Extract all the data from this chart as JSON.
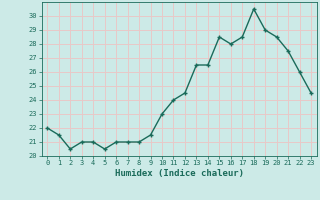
{
  "x": [
    0,
    1,
    2,
    3,
    4,
    5,
    6,
    7,
    8,
    9,
    10,
    11,
    12,
    13,
    14,
    15,
    16,
    17,
    18,
    19,
    20,
    21,
    22,
    23
  ],
  "y": [
    22,
    21.5,
    20.5,
    21,
    21,
    20.5,
    21,
    21,
    21,
    21.5,
    23,
    24,
    24.5,
    26.5,
    26.5,
    28.5,
    28,
    28.5,
    30.5,
    29,
    28.5,
    27.5,
    26,
    24.5
  ],
  "line_color": "#1a6b5a",
  "marker_color": "#1a6b5a",
  "bg_color": "#cceae7",
  "grid_color": "#e8c8c8",
  "xlabel": "Humidex (Indice chaleur)",
  "ylim": [
    20,
    31
  ],
  "xlim": [
    -0.5,
    23.5
  ],
  "yticks": [
    20,
    21,
    22,
    23,
    24,
    25,
    26,
    27,
    28,
    29,
    30
  ],
  "xticks": [
    0,
    1,
    2,
    3,
    4,
    5,
    6,
    7,
    8,
    9,
    10,
    11,
    12,
    13,
    14,
    15,
    16,
    17,
    18,
    19,
    20,
    21,
    22,
    23
  ],
  "xtick_labels": [
    "0",
    "1",
    "2",
    "3",
    "4",
    "5",
    "6",
    "7",
    "8",
    "9",
    "10",
    "11",
    "12",
    "13",
    "14",
    "15",
    "16",
    "17",
    "18",
    "19",
    "20",
    "21",
    "22",
    "23"
  ],
  "font_color": "#1a6b5a",
  "linewidth": 1.0,
  "markersize": 2.5
}
